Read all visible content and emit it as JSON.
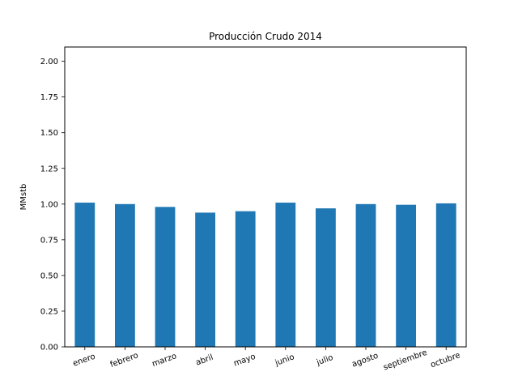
{
  "chart_data": {
    "type": "bar",
    "title": "Producción Crudo 2014",
    "xlabel": "",
    "ylabel": "MMstb",
    "categories": [
      "enero",
      "febrero",
      "marzo",
      "abril",
      "mayo",
      "junio",
      "julio",
      "agosto",
      "septiembre",
      "octubre"
    ],
    "values": [
      1.01,
      1.0,
      0.98,
      0.94,
      0.95,
      1.01,
      0.97,
      1.0,
      0.995,
      1.005
    ],
    "ylim": [
      0,
      2.1
    ],
    "yticks": [
      "0.00",
      "0.25",
      "0.50",
      "0.75",
      "1.00",
      "1.25",
      "1.50",
      "1.75",
      "2.00"
    ],
    "bar_color": "#1f77b4",
    "grid": false,
    "legend": "none"
  }
}
